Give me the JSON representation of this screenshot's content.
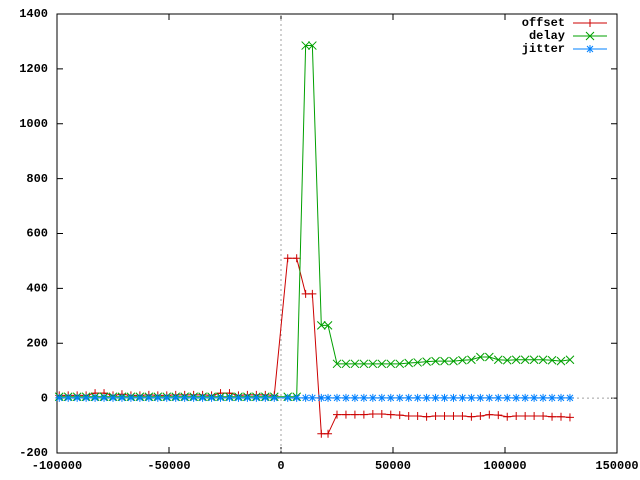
{
  "chart_data": {
    "type": "line",
    "x": [
      -99000,
      -95000,
      -91000,
      -87000,
      -83000,
      -79000,
      -75000,
      -71000,
      -67000,
      -63000,
      -59000,
      -55000,
      -51000,
      -47000,
      -43000,
      -39000,
      -35000,
      -31000,
      -27000,
      -23000,
      -19000,
      -15000,
      -11000,
      -7000,
      -3000,
      3000,
      7000,
      11000,
      14000,
      18000,
      21000,
      25000,
      29000,
      33000,
      37000,
      41000,
      45000,
      49000,
      53000,
      57000,
      61000,
      65000,
      69000,
      73000,
      77000,
      81000,
      85000,
      89000,
      93000,
      97000,
      101000,
      105000,
      109000,
      113000,
      117000,
      121000,
      125000,
      129000
    ],
    "series": [
      {
        "name": "offset",
        "color": "#cc0000",
        "marker": "plus",
        "values": [
          10,
          10,
          10,
          10,
          18,
          18,
          10,
          14,
          10,
          10,
          12,
          10,
          10,
          12,
          12,
          12,
          12,
          10,
          18,
          18,
          10,
          12,
          12,
          12,
          10,
          510,
          510,
          380,
          380,
          -130,
          -130,
          -60,
          -60,
          -60,
          -60,
          -58,
          -58,
          -60,
          -62,
          -65,
          -65,
          -68,
          -65,
          -65,
          -65,
          -65,
          -68,
          -65,
          -60,
          -62,
          -68,
          -65,
          -65,
          -65,
          -65,
          -68,
          -68,
          -70
        ]
      },
      {
        "name": "delay",
        "color": "#00a000",
        "marker": "cross",
        "values": [
          5,
          5,
          5,
          5,
          5,
          5,
          5,
          5,
          5,
          5,
          5,
          5,
          5,
          5,
          5,
          5,
          5,
          5,
          5,
          5,
          5,
          5,
          5,
          5,
          5,
          5,
          5,
          1285,
          1285,
          265,
          265,
          125,
          125,
          125,
          125,
          125,
          125,
          125,
          125,
          128,
          130,
          133,
          135,
          135,
          135,
          138,
          140,
          150,
          150,
          140,
          138,
          140,
          140,
          140,
          140,
          138,
          135,
          140
        ]
      },
      {
        "name": "jitter",
        "color": "#0080ff",
        "marker": "star",
        "values": [
          1,
          1,
          1,
          1,
          1,
          1,
          1,
          1,
          1,
          1,
          1,
          1,
          1,
          1,
          1,
          1,
          1,
          1,
          1,
          1,
          1,
          1,
          1,
          1,
          1,
          1,
          1,
          1,
          1,
          1,
          1,
          1,
          1,
          1,
          1,
          1,
          1,
          1,
          1,
          1,
          1,
          1,
          1,
          1,
          1,
          1,
          1,
          1,
          1,
          1,
          1,
          1,
          1,
          1,
          1,
          1,
          1,
          1
        ]
      }
    ],
    "xlim": [
      -100000,
      150000
    ],
    "xticks": [
      -100000,
      -50000,
      0,
      50000,
      100000,
      150000
    ],
    "ylim": [
      -200,
      1400
    ],
    "yticks": [
      -200,
      0,
      200,
      400,
      600,
      800,
      1000,
      1200,
      1400
    ],
    "zeroaxis": true,
    "legend": "top-right"
  }
}
